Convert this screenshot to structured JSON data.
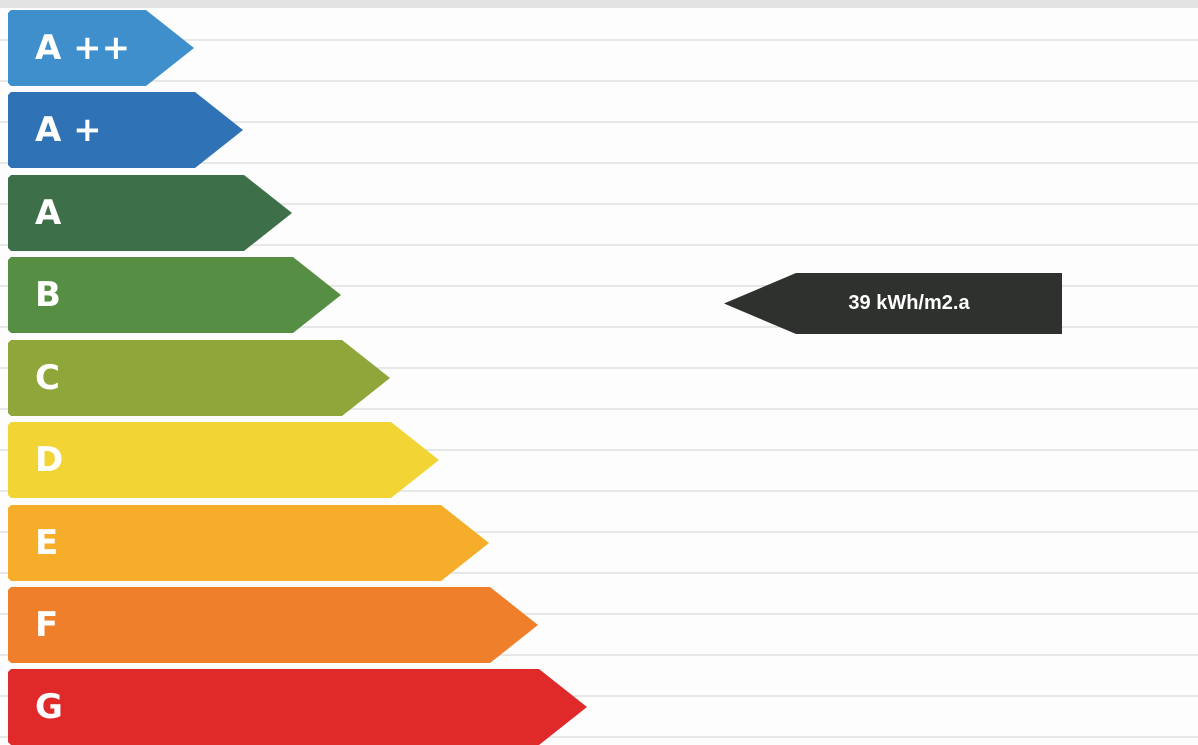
{
  "energy_label": {
    "classes": [
      {
        "label": "A ++",
        "color": "#3f8fcc"
      },
      {
        "label": "A +",
        "color": "#2f72b6"
      },
      {
        "label": "A",
        "color": "#3d7048"
      },
      {
        "label": "B",
        "color": "#568f43"
      },
      {
        "label": "C",
        "color": "#8fa63a"
      },
      {
        "label": "D",
        "color": "#f2d534"
      },
      {
        "label": "E",
        "color": "#f6ad2a"
      },
      {
        "label": "F",
        "color": "#ef7f2a"
      },
      {
        "label": "G",
        "color": "#e02a2a"
      }
    ],
    "rating": {
      "value": "39 kWh/m2.a",
      "class": "B",
      "color": "#2e312d"
    }
  }
}
